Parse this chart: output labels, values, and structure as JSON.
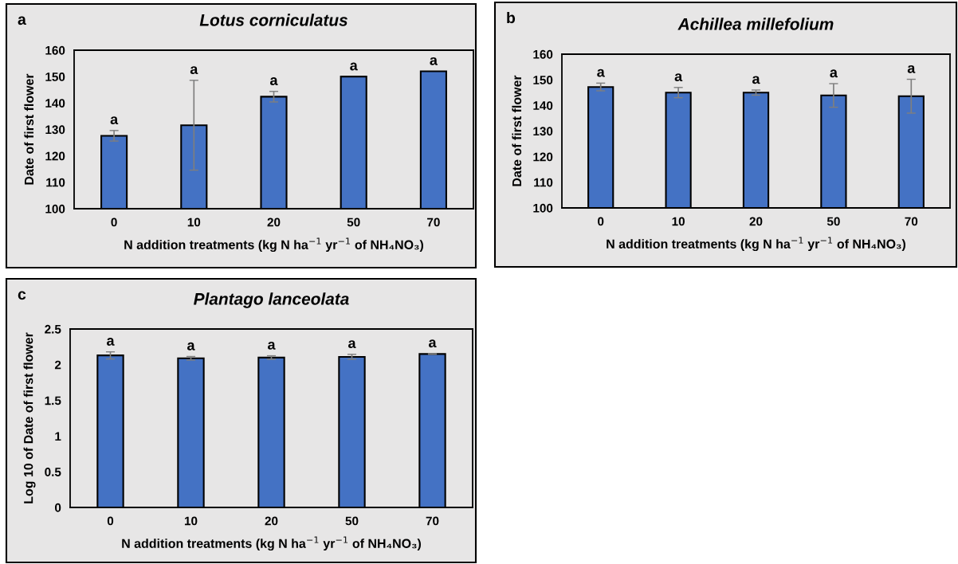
{
  "chart_data": [
    {
      "type": "bar",
      "title": "Lotus corniculatus",
      "xlabel": "N addition treatments (kg N ha$^{−1}$ yr$^{−1}$ of NH₄NO₃)",
      "ylabel": "Date of first flower",
      "categories": [
        "0",
        "10",
        "20",
        "50",
        "70"
      ],
      "values": [
        127.6,
        131.6,
        142.4,
        150,
        152
      ],
      "errors": [
        2,
        17,
        2,
        null,
        null
      ],
      "color": "#4472c4",
      "ylim": [
        100,
        160
      ],
      "yticks": [
        100,
        110,
        120,
        130,
        140,
        150,
        160
      ],
      "grid": false,
      "annotations": [
        "a",
        {
          "text": "a",
          "x": "0",
          "y": 129.6
        },
        {
          "text": "a",
          "x": "10",
          "y": 148.6
        },
        {
          "text": "a",
          "x": "20",
          "y": 144.4
        },
        {
          "text": "a",
          "x": "50",
          "y": 150
        },
        {
          "text": "a",
          "x": "70",
          "y": 152
        }
      ]
    },
    {
      "type": "bar",
      "title": "Achillea millefolium",
      "xlabel": "N addition treatments (kg N ha$^{−1}$ yr$^{−1}$ of NH₄NO₃)",
      "ylabel": "Date of first flower",
      "categories": [
        "0",
        "10",
        "20",
        "50",
        "70"
      ],
      "values": [
        147.2,
        145,
        145,
        143.9,
        143.6
      ],
      "errors": [
        1.5,
        2,
        1,
        4.6,
        6.6
      ],
      "color": "#4472c4",
      "ylim": [
        100,
        160
      ],
      "yticks": [
        100,
        110,
        120,
        130,
        140,
        150,
        160
      ],
      "grid": false,
      "annotations": [
        "b",
        {
          "text": "a",
          "x": "0",
          "y": 148.7
        },
        {
          "text": "a",
          "x": "10",
          "y": 147
        },
        {
          "text": "a",
          "x": "20",
          "y": 146
        },
        {
          "text": "a",
          "x": "50",
          "y": 148.5
        },
        {
          "text": "a",
          "x": "70",
          "y": 150.2
        }
      ]
    },
    {
      "type": "bar",
      "title": "Plantago lanceolata",
      "xlabel": "N addition treatments (kg N ha$^{−1}$ yr$^{−1}$ of NH₄NO₃)",
      "ylabel": "Log 10 of Date of first flower",
      "categories": [
        "0",
        "10",
        "20",
        "50",
        "70"
      ],
      "values": [
        2.13,
        2.09,
        2.1,
        2.11,
        2.15
      ],
      "errors": [
        0.05,
        0.025,
        0.025,
        0.035,
        0.005
      ],
      "color": "#4472c4",
      "ylim": [
        0,
        2.5
      ],
      "yticks": [
        0,
        {
          "value": 0.5,
          "label": "0.5"
        },
        1,
        {
          "value": 1.5,
          "label": "1.5"
        },
        2,
        {
          "value": 2.5,
          "label": "2.5"
        }
      ],
      "grid": false,
      "annotations": [
        "c",
        {
          "text": "a",
          "x": "0",
          "y": 2.18
        },
        {
          "text": "a",
          "x": "10",
          "y": 2.115
        },
        {
          "text": "a",
          "x": "20",
          "y": 2.125
        },
        {
          "text": "a",
          "x": "50",
          "y": 2.145
        },
        {
          "text": "a",
          "x": "70",
          "y": 2.155
        }
      ]
    }
  ]
}
